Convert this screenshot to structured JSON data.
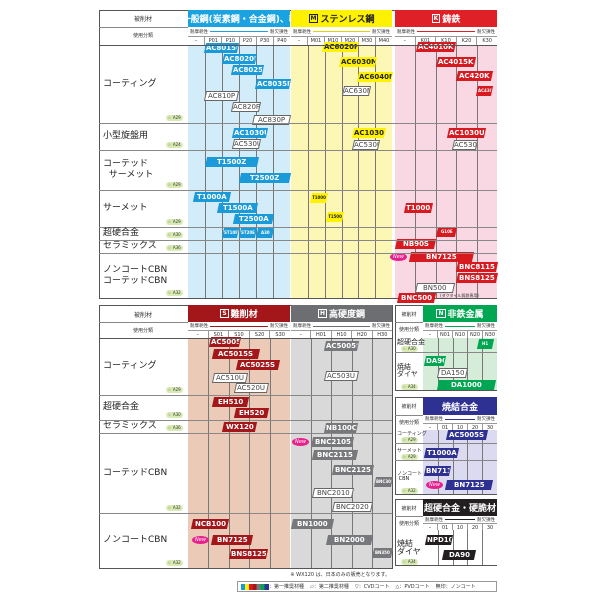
{
  "labels": {
    "material": "被削材",
    "class": "使用分類",
    "wear": "耐摩耗性",
    "tough": "耐欠損性"
  },
  "top_rows": [
    {
      "label": "コーティング",
      "ref": "☞ A29"
    },
    {
      "label": "小型旋盤用",
      "ref": "☞ A24"
    },
    {
      "label": "コーテッド\n  サーメット",
      "ref": "☞ A29"
    },
    {
      "label": "サーメット",
      "ref": "☞ A29"
    },
    {
      "label": "超硬合金",
      "ref": "☞ A30"
    },
    {
      "label": "セラミックス",
      "ref": "☞ A36"
    },
    {
      "label": "ノンコートCBN\nコーテッドCBN",
      "ref": "☞ A32"
    }
  ],
  "bottom_rows": [
    {
      "label": "コーティング",
      "ref": "☞ A29"
    },
    {
      "label": "超硬合金",
      "ref": "☞ A30"
    },
    {
      "label": "セラミックス",
      "ref": "☞ A36"
    },
    {
      "label": "コーテッドCBN",
      "ref": "☞ A32"
    },
    {
      "label": "ノンコートCBN",
      "ref": "☞ A32"
    }
  ],
  "side_rows": {
    "N": [
      {
        "label": "超硬合金",
        "ref": "☞ A30"
      },
      {
        "label": "焼結\nダイヤ",
        "ref": "☞ A34"
      }
    ],
    "sint": [
      {
        "label": "コーティング",
        "ref": "☞ A29"
      },
      {
        "label": "サーメット",
        "ref": "☞ A29"
      },
      {
        "label": "ノンコート\n CBN",
        "ref": "☞ A32"
      }
    ],
    "carb": [
      {
        "label": "焼結\nダイヤ",
        "ref": "☞ A34"
      }
    ]
  },
  "sections": {
    "P": {
      "letter": "P",
      "title": "一般鋼(炭素鋼・合金鋼)、軟鋼",
      "color": "#1aa3e0",
      "bg": "#d3ecf9",
      "chip": "#1a9ad8",
      "chiptext": "#fff",
      "codes": [
        "–",
        "P01",
        "P10",
        "P20",
        "P30",
        "P40"
      ],
      "chips": [
        {
          "label": "AC8015P",
          "type": "primary"
        },
        {
          "label": "AC8020P",
          "type": "primary"
        },
        {
          "label": "AC8025P",
          "type": "primary"
        },
        {
          "label": "AC8035P",
          "type": "primary"
        },
        {
          "label": "AC810P",
          "type": "secondary"
        },
        {
          "label": "AC820P",
          "type": "secondary"
        },
        {
          "label": "AC830P",
          "type": "secondary"
        },
        {
          "label": "AC1030U",
          "type": "primary"
        },
        {
          "label": "AC530U",
          "type": "secondary"
        },
        {
          "label": "T1500Z",
          "type": "primary"
        },
        {
          "label": "T2500Z",
          "type": "primary"
        },
        {
          "label": "T1000A",
          "type": "primary"
        },
        {
          "label": "T1500A",
          "type": "primary"
        },
        {
          "label": "T2500A",
          "type": "primary"
        },
        {
          "label": "ST10P",
          "type": "primary"
        },
        {
          "label": "ST20E",
          "type": "primary"
        },
        {
          "label": "A30",
          "type": "primary"
        }
      ]
    },
    "M": {
      "letter": "M",
      "title": "ステンレス鋼",
      "color": "#fff200",
      "titlecolor": "#222",
      "bg": "#fdf7b6",
      "chip": "#fff200",
      "chiptext": "#222",
      "codes": [
        "–",
        "M01",
        "M10",
        "M20",
        "M30",
        "M40"
      ],
      "chips": [
        {
          "label": "AC6020M",
          "type": "primary"
        },
        {
          "label": "AC6030M",
          "type": "primary"
        },
        {
          "label": "AC6040M",
          "type": "primary"
        },
        {
          "label": "AC630M",
          "type": "secondary"
        },
        {
          "label": "AC1030U",
          "type": "primary"
        },
        {
          "label": "AC530U",
          "type": "secondary"
        },
        {
          "label": "T1000A",
          "type": "primary"
        },
        {
          "label": "T1500A",
          "type": "primary"
        }
      ]
    },
    "K": {
      "letter": "K",
      "title": "鋳鉄",
      "color": "#e02027",
      "bg": "#f9d7e3",
      "chip": "#d71920",
      "chiptext": "#fff",
      "codes": [
        "–",
        "K01",
        "K10",
        "K20",
        "K30"
      ],
      "chips": [
        {
          "label": "AC4010K",
          "type": "primary"
        },
        {
          "label": "AC4015K",
          "type": "primary"
        },
        {
          "label": "AC420K",
          "type": "primary"
        },
        {
          "label": "AC430K",
          "type": "primary"
        },
        {
          "label": "AC1030U",
          "type": "primary"
        },
        {
          "label": "AC530U",
          "type": "secondary"
        },
        {
          "label": "T1000A",
          "type": "primary"
        },
        {
          "label": "G10E",
          "type": "primary"
        },
        {
          "label": "NB90S",
          "type": "primary"
        },
        {
          "label": "BN7125",
          "type": "primary"
        },
        {
          "label": "BNC8115",
          "type": "primary"
        },
        {
          "label": "BNS8125",
          "type": "primary"
        },
        {
          "label": "BN500",
          "type": "secondary"
        },
        {
          "label": "BNC500",
          "type": "primary"
        }
      ],
      "note": "(ダクタイル鋳鉄専用)"
    },
    "S": {
      "letter": "S",
      "title": "難削材",
      "color": "#a3161a",
      "bg": "#eccab8",
      "chip": "#a3161a",
      "chiptext": "#fff",
      "codes": [
        "–",
        "S01",
        "S10",
        "S20",
        "S30"
      ],
      "chips": [
        {
          "label": "AC5005S",
          "type": "primary"
        },
        {
          "label": "AC5015S",
          "type": "primary"
        },
        {
          "label": "AC5025S",
          "type": "primary"
        },
        {
          "label": "AC510U",
          "type": "secondary"
        },
        {
          "label": "AC520U",
          "type": "secondary"
        },
        {
          "label": "EH510",
          "type": "primary"
        },
        {
          "label": "EH520",
          "type": "primary"
        },
        {
          "label": "WX120",
          "type": "primary"
        },
        {
          "label": "NCB100",
          "type": "primary"
        },
        {
          "label": "BN7125",
          "type": "primary"
        },
        {
          "label": "BNS8125",
          "type": "primary"
        }
      ]
    },
    "H": {
      "letter": "H",
      "title": "高硬度鋼",
      "color": "#6d6e71",
      "bg": "#d9d9d9",
      "chip": "#77787b",
      "chiptext": "#fff",
      "codes": [
        "–",
        "H01",
        "H10",
        "H20",
        "H30"
      ],
      "chips": [
        {
          "label": "AC5005S",
          "type": "primary"
        },
        {
          "label": "AC503U",
          "type": "secondary"
        },
        {
          "label": "NB100C",
          "type": "primary"
        },
        {
          "label": "BNC2105",
          "type": "primary"
        },
        {
          "label": "BNC2115",
          "type": "primary"
        },
        {
          "label": "BNC2125",
          "type": "primary"
        },
        {
          "label": "BNC300",
          "type": "primary"
        },
        {
          "label": "BNC2010",
          "type": "secondary"
        },
        {
          "label": "BNC2020",
          "type": "secondary"
        },
        {
          "label": "BN1000",
          "type": "primary"
        },
        {
          "label": "BN2000",
          "type": "primary"
        },
        {
          "label": "BN350",
          "type": "primary"
        }
      ]
    },
    "N": {
      "letter": "N",
      "title": "非鉄金属",
      "color": "#00a651",
      "bg": "#d5ecd9",
      "chip": "#00a651",
      "chiptext": "#fff",
      "codes": [
        "–",
        "N01",
        "N10",
        "N20",
        "N30"
      ],
      "chips": [
        {
          "label": "H1",
          "type": "primary"
        },
        {
          "label": "DA90",
          "type": "primary"
        },
        {
          "label": "DA150",
          "type": "secondary"
        },
        {
          "label": "DA1000",
          "type": "primary"
        }
      ]
    },
    "sint": {
      "letter": "",
      "title": "焼結合金",
      "color": "#2e3192",
      "bg": "#dcdaf0",
      "chip": "#2e3192",
      "chiptext": "#fff",
      "codes": [
        "–",
        "01",
        "10",
        "20",
        "30"
      ],
      "chips": [
        {
          "label": "AC5005S",
          "type": "primary"
        },
        {
          "label": "T1000A",
          "type": "primary"
        },
        {
          "label": "BN7115",
          "type": "primary"
        },
        {
          "label": "BN7125",
          "type": "primary"
        }
      ]
    },
    "carb": {
      "letter": "",
      "title": "超硬合金・硬脆材",
      "color": "#231f20",
      "bg": "#ffffff",
      "chip": "#231f20",
      "chiptext": "#fff",
      "codes": [
        "–",
        "01",
        "10",
        "20",
        "30"
      ],
      "chips": [
        {
          "label": "NPD10",
          "type": "primary"
        },
        {
          "label": "DA90",
          "type": "primary"
        }
      ]
    }
  },
  "new_badge": "New",
  "footnote": "※ WX120 は、日本のみの販売となります。",
  "legend": {
    "primary": "：第一推奨材種",
    "secondary": "：第二推奨材種",
    "cvd": "：CVDコート",
    "pvd": "：PVDコート",
    "none": "無印：ノンコート"
  }
}
